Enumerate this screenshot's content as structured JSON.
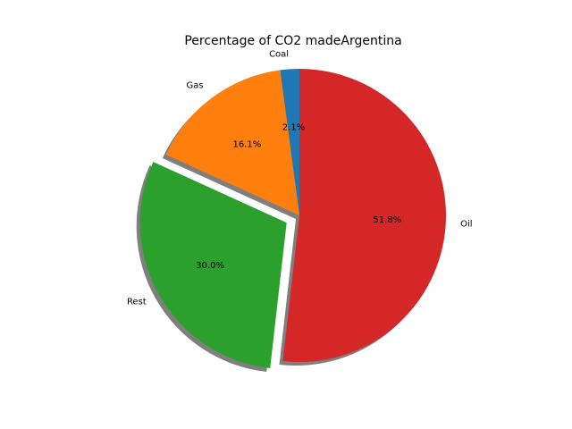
{
  "chart_data": {
    "type": "pie",
    "title": "Percentage of CO2 madeArgentina",
    "categories": [
      "Coal",
      "Gas",
      "Rest",
      "Oil"
    ],
    "values": [
      2.1,
      16.1,
      30.0,
      51.8
    ],
    "percent_labels": [
      "2.1%",
      "16.1%",
      "30.0%",
      "51.8%"
    ],
    "colors": [
      "#1f77b4",
      "#ff7f0e",
      "#2ca02c",
      "#d62728"
    ],
    "exploded": [
      false,
      false,
      true,
      false
    ],
    "shadow": true,
    "start_angle_deg": 90,
    "direction": "counterclockwise"
  }
}
